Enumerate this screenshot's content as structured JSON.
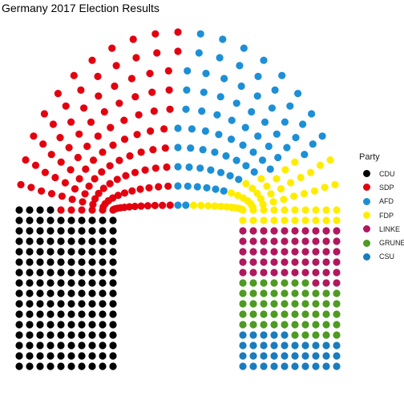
{
  "chart_data": {
    "type": "scatter",
    "title": "Germany 2017 Election Results",
    "legend": {
      "title": "Party",
      "placement": "right"
    },
    "series": [
      {
        "name": "CDU",
        "seats": 200,
        "color": "#000000"
      },
      {
        "name": "SDP",
        "seats": 153,
        "color": "#e3000f"
      },
      {
        "name": "AFD",
        "seats": 94,
        "color": "#1d8fd6"
      },
      {
        "name": "FDP",
        "seats": 80,
        "color": "#ffed00"
      },
      {
        "name": "LINKE",
        "seats": 69,
        "color": "#b0185e"
      },
      {
        "name": "GRUNE",
        "seats": 67,
        "color": "#4e9a22"
      },
      {
        "name": "CSU",
        "seats": 46,
        "color": "#1a7cbd"
      }
    ]
  }
}
